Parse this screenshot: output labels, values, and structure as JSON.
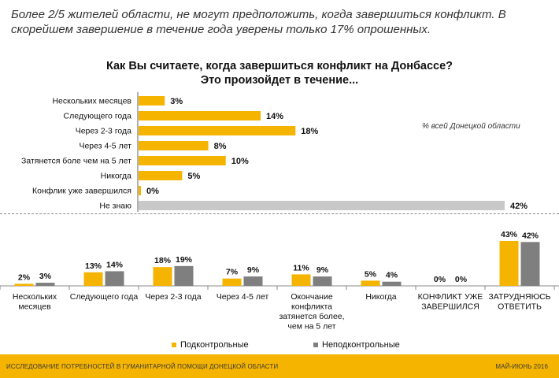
{
  "headline": "Более 2/5 жителей области, не могут предположить, когда завершиться конфликт. В скорейшем завершение в течение года уверены только 17% опрошенных.",
  "colors": {
    "accent": "#f5b400",
    "gray_bar": "#c8c8c8",
    "series2": "#7f7f7f"
  },
  "chart_data": [
    {
      "type": "bar",
      "orientation": "horizontal",
      "title": "Как Вы считаете, когда завершиться конфликт на Донбассе?",
      "subtitle": "Это произойдет в течение...",
      "note": "% всей Донецкой области",
      "categories": [
        "Нескольких месяцев",
        "Следующего года",
        "Через 2-3 года",
        "Через 4-5 лет",
        "Затянется боле чем на 5 лет",
        "Никогда",
        "Конфлик уже завершился",
        "Не знаю"
      ],
      "values": [
        3,
        14,
        18,
        8,
        10,
        5,
        0,
        42
      ],
      "labels": [
        "3%",
        "14%",
        "18%",
        "8%",
        "10%",
        "5%",
        "0%",
        "42%"
      ],
      "highlight_gray": [
        false,
        false,
        false,
        false,
        false,
        false,
        false,
        true
      ],
      "xlim": [
        0,
        42
      ]
    },
    {
      "type": "bar",
      "categories": [
        [
          "Нескольких",
          "месяцев"
        ],
        [
          "Следующего года"
        ],
        [
          "Через 2-3 года"
        ],
        [
          "Через 4-5 лет"
        ],
        [
          "Окончание",
          "конфликта",
          "затянется более,",
          "чем на 5 лет"
        ],
        [
          "Никогда"
        ],
        [
          "КОНФЛИКТ УЖЕ",
          "ЗАВЕРШИЛСЯ"
        ],
        [
          "ЗАТРУДНЯЮСЬ",
          "ОТВЕТИТЬ"
        ]
      ],
      "series": [
        {
          "name": "Подконтрольные",
          "values": [
            2,
            13,
            18,
            7,
            11,
            5,
            0,
            43
          ],
          "labels": [
            "2%",
            "13%",
            "18%",
            "7%",
            "11%",
            "5%",
            "0%",
            "43%"
          ]
        },
        {
          "name": "Неподконтрольные",
          "values": [
            3,
            14,
            19,
            9,
            9,
            4,
            0,
            42
          ],
          "labels": [
            "3%",
            "14%",
            "19%",
            "9%",
            "9%",
            "4%",
            "0%",
            "42%"
          ]
        }
      ],
      "ylim": [
        0,
        43
      ],
      "legend": "bottom"
    }
  ],
  "footer": {
    "left": "ИССЛЕДОВАНИЕ ПОТРЕБНОСТЕЙ В ГУМАНИТАРНОЙ ПОМОЩИ ДОНЕЦКОЙ ОБЛАСТИ",
    "right": "МАЙ-ИЮНЬ 2016"
  }
}
